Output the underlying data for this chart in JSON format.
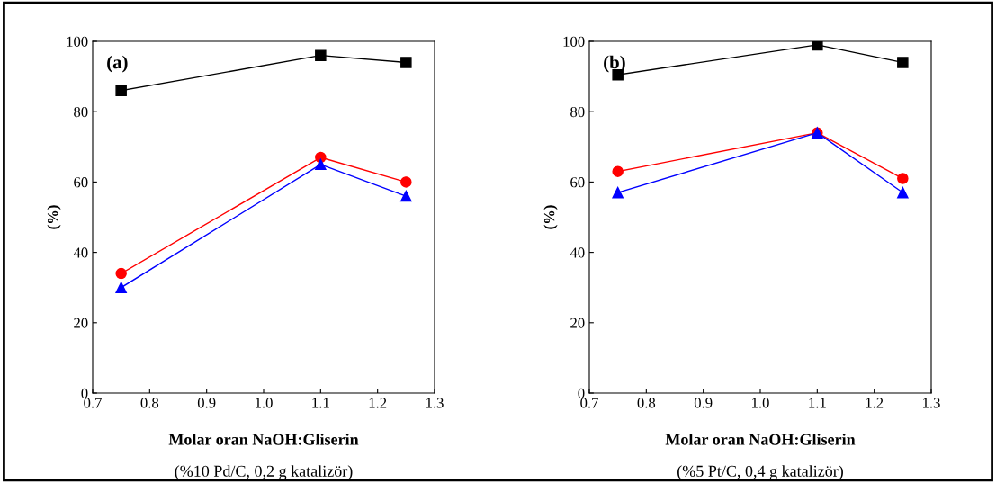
{
  "chart_data": [
    {
      "type": "line",
      "title": "(a)",
      "xlabel": "Molar oran NaOH:Gliserin",
      "ylabel": "(%)",
      "annotations": [
        "(%10 Pd/C, 0,2 g katalizör)"
      ],
      "x": [
        0.75,
        1.1,
        1.25
      ],
      "xlim": [
        0.7,
        1.3
      ],
      "xticks": [
        {
          "value": 0.7,
          "label": "0.7"
        },
        {
          "value": 0.8,
          "label": "0.8"
        },
        {
          "value": 0.9,
          "label": "0.9"
        },
        {
          "value": 1.0,
          "label": "1.0"
        },
        {
          "value": 1.1,
          "label": "1.1"
        },
        {
          "value": 1.2,
          "label": "1.2"
        },
        {
          "value": 1.3,
          "label": "1.3"
        }
      ],
      "ylim": [
        0,
        100
      ],
      "yticks": [
        0,
        20,
        40,
        60,
        80,
        100
      ],
      "grid": false,
      "series": [
        {
          "color": "#000000",
          "marker": "square",
          "values": [
            86,
            96,
            94
          ]
        },
        {
          "color": "#ff0000",
          "marker": "circle",
          "values": [
            34,
            67,
            60
          ]
        },
        {
          "color": "#0000ff",
          "marker": "triangle",
          "values": [
            30,
            65,
            56
          ]
        }
      ]
    },
    {
      "type": "line",
      "title": "(b)",
      "xlabel": "Molar oran NaOH:Gliserin",
      "ylabel": "(%)",
      "annotations": [
        "(%5 Pt/C, 0,4 g katalizör)"
      ],
      "x": [
        0.75,
        1.1,
        1.25
      ],
      "xlim": [
        0.7,
        1.3
      ],
      "xticks": [
        {
          "value": 0.7,
          "label": "0.7"
        },
        {
          "value": 0.8,
          "label": "0.8"
        },
        {
          "value": 0.9,
          "label": "0.9"
        },
        {
          "value": 1.0,
          "label": "1.0"
        },
        {
          "value": 1.1,
          "label": "1.1"
        },
        {
          "value": 1.2,
          "label": "1.2"
        },
        {
          "value": 1.3,
          "label": "1.3"
        }
      ],
      "ylim": [
        0,
        100
      ],
      "yticks": [
        0,
        20,
        40,
        60,
        80,
        100
      ],
      "grid": false,
      "series": [
        {
          "color": "#000000",
          "marker": "square",
          "values": [
            90.5,
            99,
            94
          ]
        },
        {
          "color": "#ff0000",
          "marker": "circle",
          "values": [
            63,
            74,
            61
          ]
        },
        {
          "color": "#0000ff",
          "marker": "triangle",
          "values": [
            57,
            74,
            57
          ]
        }
      ]
    }
  ]
}
